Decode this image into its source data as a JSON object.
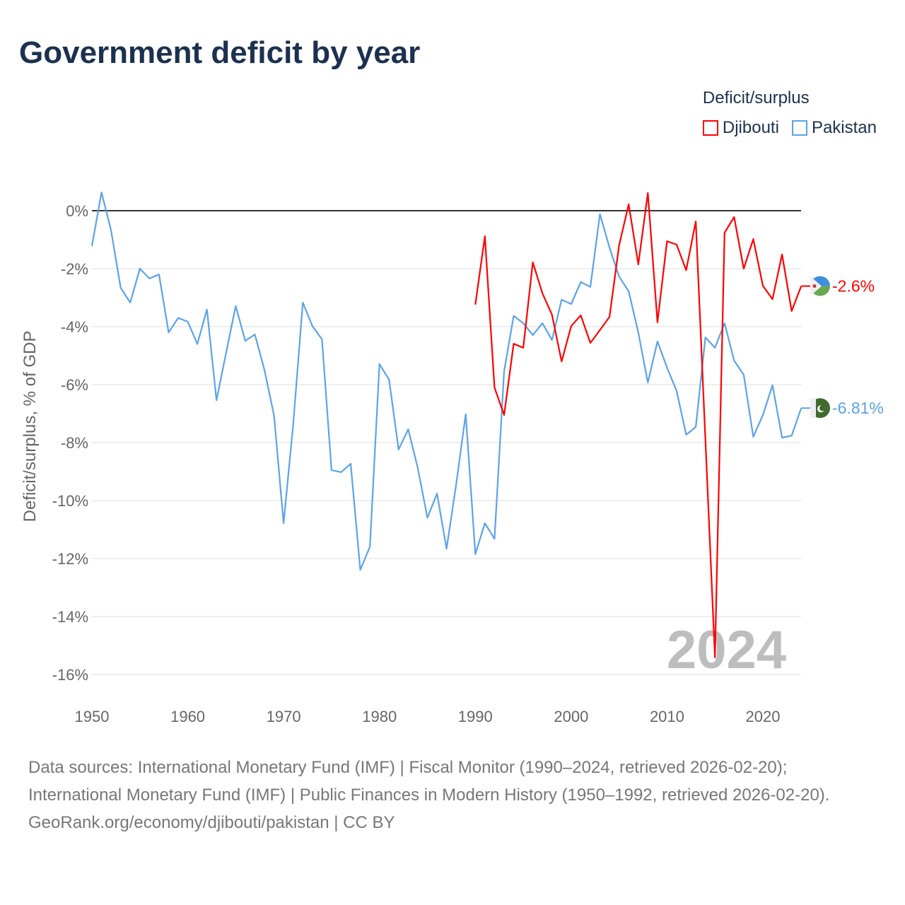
{
  "title": "Government deficit by year",
  "footer": {
    "sources": "Data sources: International Monetary Fund (IMF) | Fiscal Monitor (1990–2024, retrieved 2026-02-20); International Monetary Fund (IMF) | Public Finances in Modern History (1950–1992, retrieved 2026-02-20).",
    "link": "GeoRank.org/economy/djibouti/pakistan | CC BY"
  },
  "chart_data": {
    "type": "line",
    "title": "Government deficit by year",
    "xlabel": "",
    "ylabel": "Deficit/surplus, % of GDP",
    "xlim": [
      1950,
      2024
    ],
    "ylim": [
      -16,
      0
    ],
    "x_ticks": [
      "1950",
      "1960",
      "1970",
      "1980",
      "1990",
      "2000",
      "2010",
      "2020"
    ],
    "y_ticks": [
      "0%",
      "-2%",
      "-4%",
      "-6%",
      "-8%",
      "-10%",
      "-12%",
      "-14%",
      "-16%"
    ],
    "y_tick_values": [
      0,
      -2,
      -4,
      -6,
      -8,
      -10,
      -12,
      -14,
      -16
    ],
    "x_tick_values": [
      1950,
      1960,
      1970,
      1980,
      1990,
      2000,
      2010,
      2020
    ],
    "grid": true,
    "legend_title": "Deficit/surplus",
    "legend_position": "top-right",
    "current_year_label": "2024",
    "series": [
      {
        "name": "Djibouti",
        "color": "#ff0000",
        "end_label": "-2.6%",
        "start_year": 1990,
        "values": [
          -3.24,
          -0.88,
          -6.1,
          -7.05,
          -4.59,
          -4.73,
          -1.78,
          -2.85,
          -3.59,
          -5.2,
          -3.98,
          -3.61,
          -4.56,
          -4.12,
          -3.66,
          -1.2,
          0.22,
          -1.85,
          0.61,
          -3.85,
          -1.05,
          -1.17,
          -2.05,
          -0.37,
          -7.9,
          -15.41,
          -0.76,
          -0.22,
          -2.0,
          -0.98,
          -2.59,
          -3.05,
          -1.51,
          -3.46,
          -2.6
        ]
      },
      {
        "name": "Pakistan",
        "color": "#5ba4e8",
        "end_label": "-6.81%",
        "start_year": 1950,
        "values": [
          -1.22,
          0.63,
          -0.68,
          -2.66,
          -3.17,
          -2.0,
          -2.34,
          -2.2,
          -4.2,
          -3.7,
          -3.83,
          -4.6,
          -3.41,
          -6.54,
          -4.9,
          -3.29,
          -4.49,
          -4.27,
          -5.49,
          -7.07,
          -10.78,
          -7.37,
          -3.17,
          -3.98,
          -4.44,
          -8.95,
          -9.02,
          -8.73,
          -12.39,
          -11.59,
          -5.29,
          -5.83,
          -8.24,
          -7.54,
          -8.88,
          -10.59,
          -9.76,
          -11.66,
          -9.44,
          -7.02,
          -11.85,
          -10.78,
          -11.32,
          -5.54,
          -3.63,
          -3.88,
          -4.29,
          -3.88,
          -4.46,
          -3.07,
          -3.22,
          -2.46,
          -2.63,
          -0.12,
          -1.27,
          -2.27,
          -2.78,
          -4.2,
          -5.93,
          -4.51,
          -5.41,
          -6.22,
          -7.73,
          -7.46,
          -4.37,
          -4.73,
          -3.88,
          -5.17,
          -5.66,
          -7.8,
          -7.05,
          -6.02,
          -7.83,
          -7.76,
          -6.81
        ]
      }
    ]
  }
}
